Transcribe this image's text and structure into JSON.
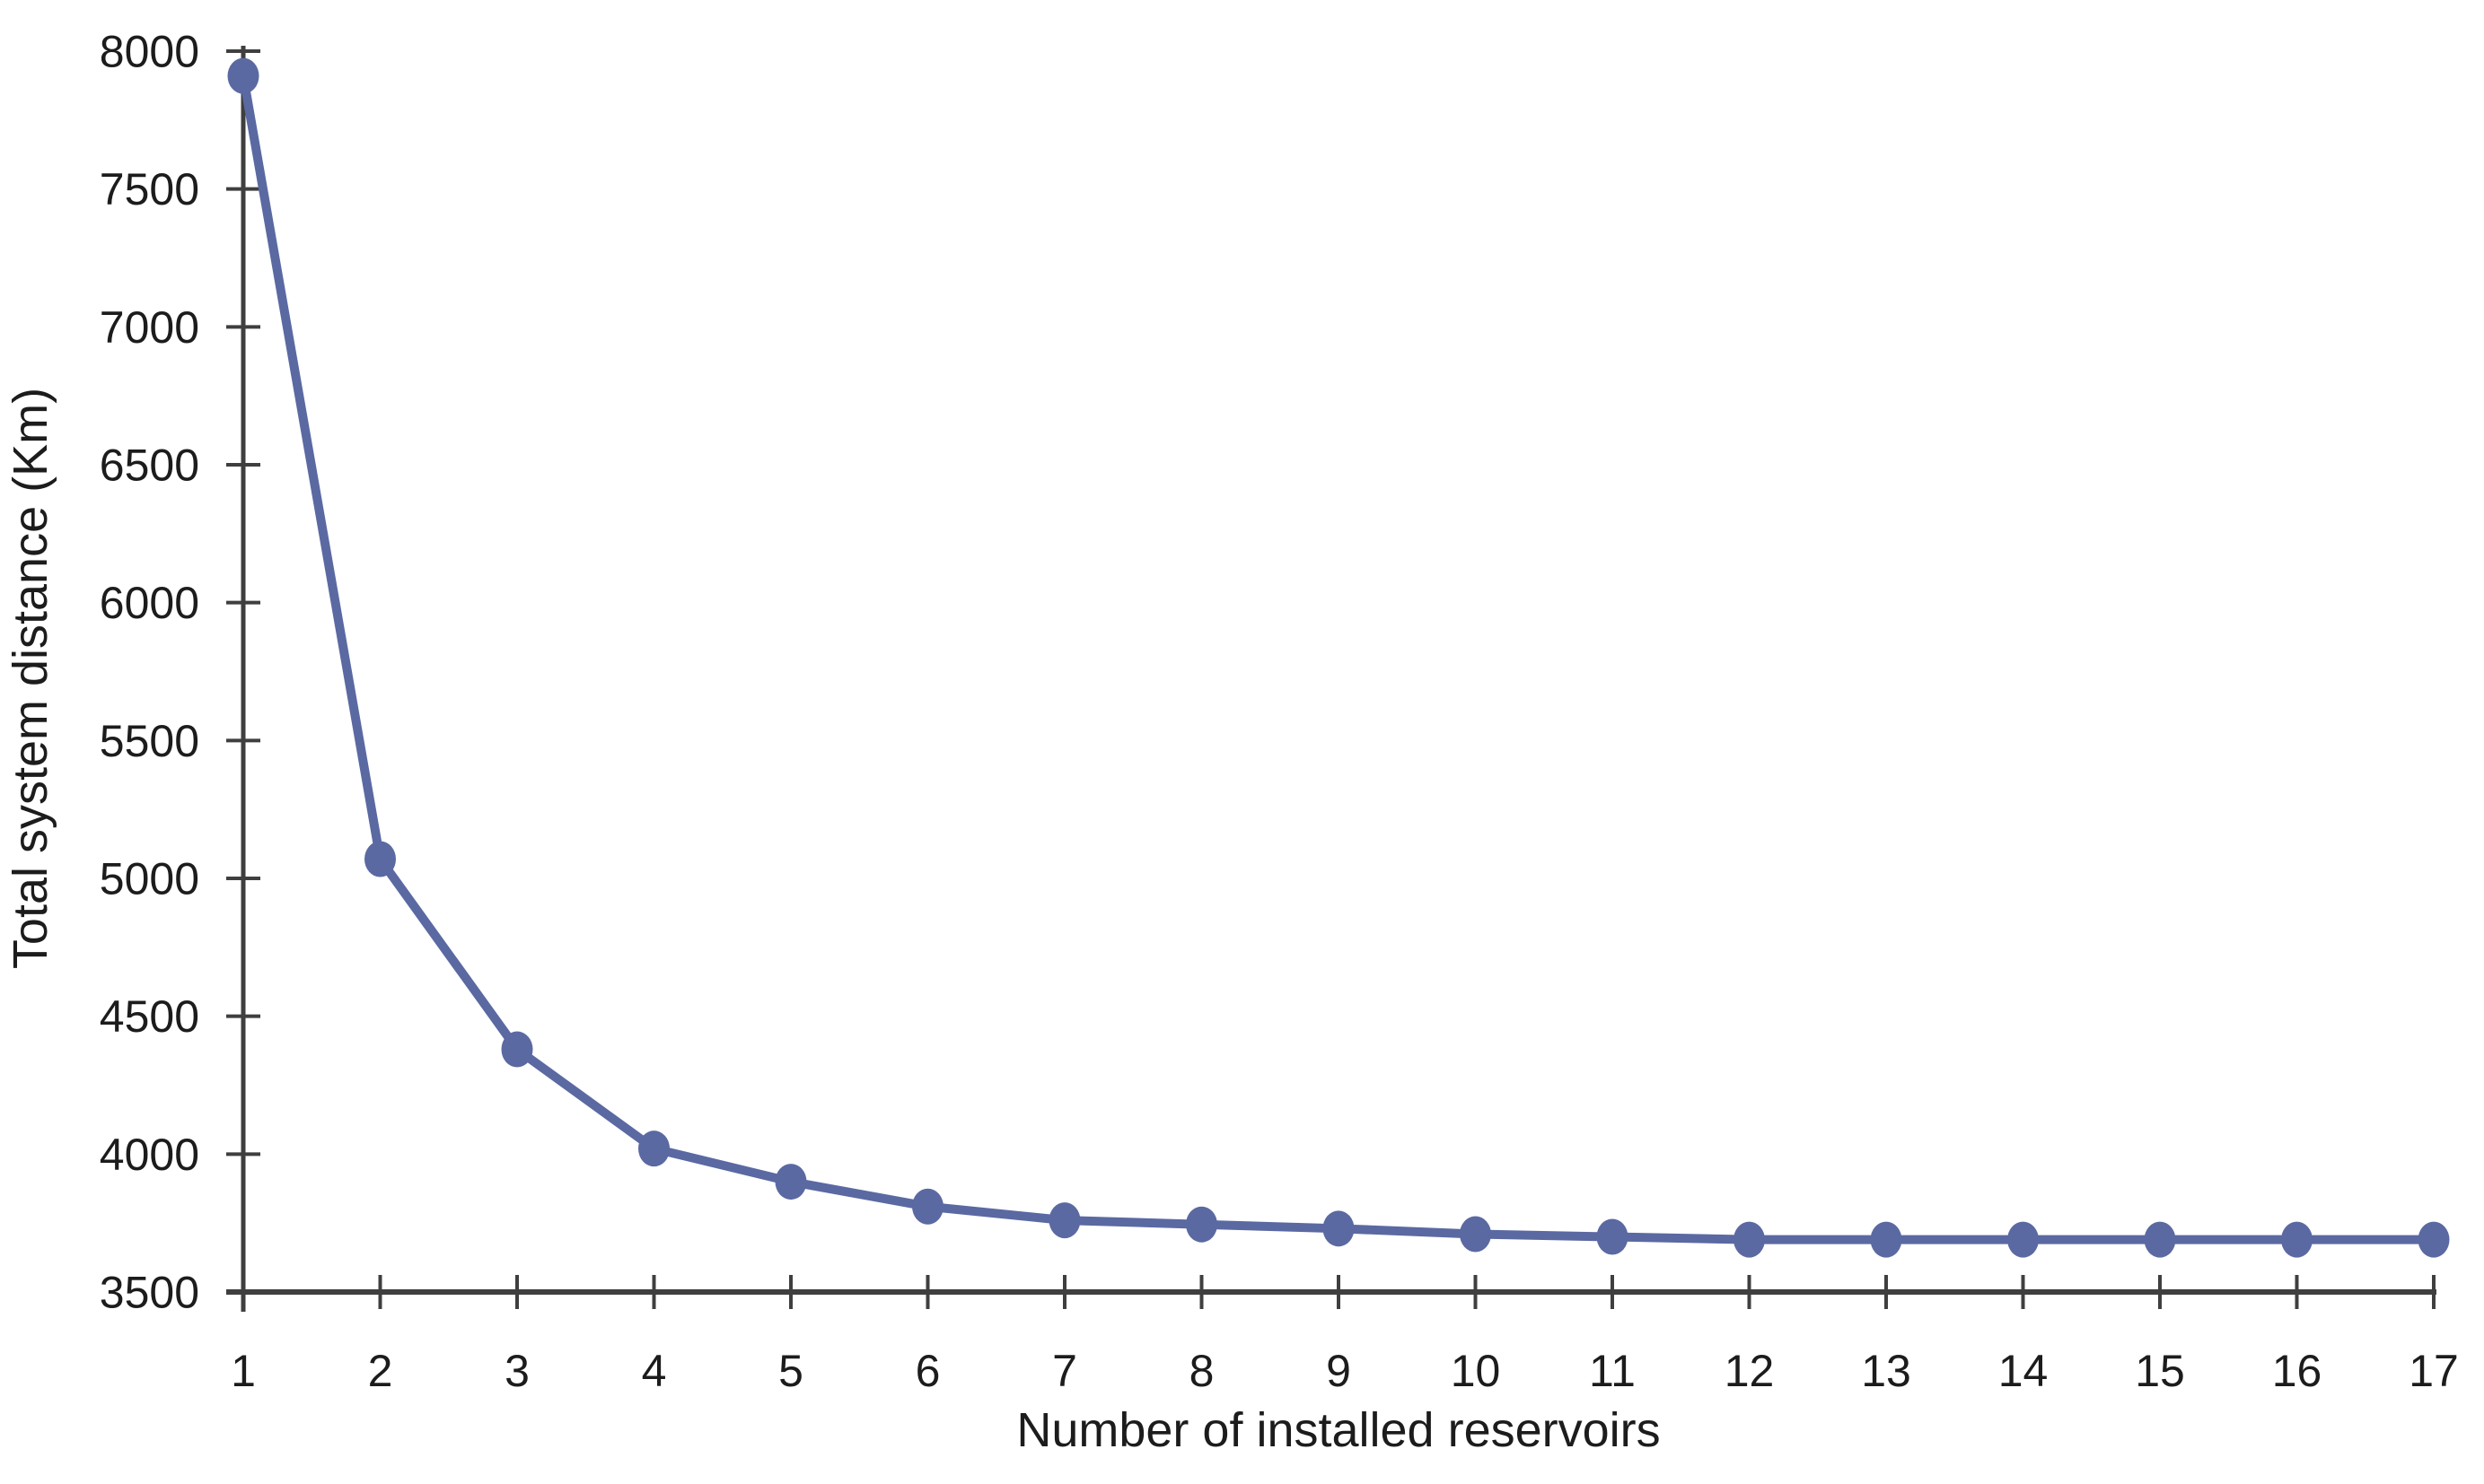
{
  "chart_data": {
    "type": "line",
    "title": "",
    "xlabel": "Number of installed reservoirs",
    "ylabel": "Total system distance (Km)",
    "x": [
      1,
      2,
      3,
      4,
      5,
      6,
      7,
      8,
      9,
      10,
      11,
      12,
      13,
      14,
      15,
      16,
      17
    ],
    "values": [
      7910,
      5070,
      4380,
      4020,
      3900,
      3810,
      3760,
      3745,
      3730,
      3710,
      3700,
      3690,
      3690,
      3690,
      3690,
      3690,
      3690
    ],
    "xlim": [
      1,
      17
    ],
    "ylim": [
      3500,
      8000
    ],
    "xticks": [
      1,
      2,
      3,
      4,
      5,
      6,
      7,
      8,
      9,
      10,
      11,
      12,
      13,
      14,
      15,
      16,
      17
    ],
    "yticks": [
      3500,
      4000,
      4500,
      5000,
      5500,
      6000,
      6500,
      7000,
      7500,
      8000
    ],
    "grid": false,
    "legend": "none",
    "marker": "circle",
    "colors": {
      "series": "#5B69A2",
      "axis": "#3F3F3F",
      "text": "#1C1C1C",
      "background": "#FFFFFF"
    }
  }
}
